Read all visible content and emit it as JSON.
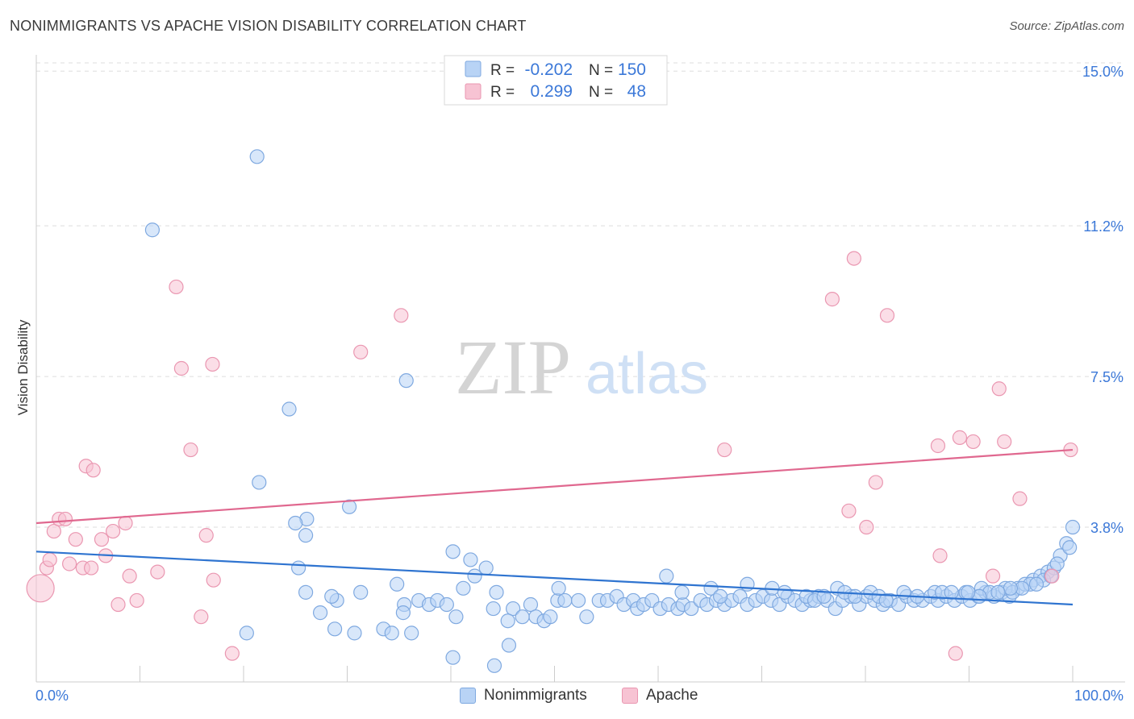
{
  "title": "NONIMMIGRANTS VS APACHE VISION DISABILITY CORRELATION CHART",
  "source": "Source: ZipAtlas.com",
  "watermark": {
    "zip": "ZIP",
    "atlas": "atlas"
  },
  "colors": {
    "blue_fill": "#b8d3f5",
    "blue_stroke": "#7fa9e0",
    "blue_line": "#2f74d0",
    "pink_fill": "#f7c3d3",
    "pink_stroke": "#ea97b1",
    "pink_line": "#e0688f",
    "tick_text": "#3b78d8",
    "grid": "#dddddd"
  },
  "legend": {
    "rows": [
      {
        "r_label": "R =",
        "r_value": "-0.202",
        "n_label": "N =",
        "n_value": "150"
      },
      {
        "r_label": "R =",
        "r_value": "0.299",
        "n_label": "N =",
        "n_value": "48"
      }
    ]
  },
  "bottom_legend": [
    "Nonimmigrants",
    "Apache"
  ],
  "chart_data": {
    "type": "scatter",
    "title": "NONIMMIGRANTS VS APACHE VISION DISABILITY CORRELATION CHART",
    "xlabel": "",
    "ylabel": "Vision Disability",
    "xlim": [
      0,
      100
    ],
    "ylim": [
      0,
      15.4
    ],
    "x_tick_labels": [
      "0.0%",
      "100.0%"
    ],
    "y_ticks": [
      3.8,
      7.5,
      11.2,
      15.0
    ],
    "y_tick_labels": [
      "3.8%",
      "7.5%",
      "11.2%",
      "15.0%"
    ],
    "grid": "horizontal dashed",
    "legend_position": "top-center",
    "series": [
      {
        "name": "Nonimmigrants",
        "r": -0.202,
        "n": 150,
        "trend": {
          "x": [
            0,
            100
          ],
          "y": [
            3.2,
            1.9
          ]
        },
        "points": [
          [
            21.3,
            12.9
          ],
          [
            11.2,
            11.1
          ],
          [
            35.7,
            7.4
          ],
          [
            24.4,
            6.7
          ],
          [
            21.5,
            4.9
          ],
          [
            30.2,
            4.3
          ],
          [
            26.1,
            4.0
          ],
          [
            25.0,
            3.9
          ],
          [
            26.0,
            3.6
          ],
          [
            40.2,
            3.2
          ],
          [
            41.9,
            3.0
          ],
          [
            25.3,
            2.8
          ],
          [
            42.3,
            2.6
          ],
          [
            34.8,
            2.4
          ],
          [
            41.2,
            2.3
          ],
          [
            43.4,
            2.8
          ],
          [
            31.3,
            2.2
          ],
          [
            26.0,
            2.2
          ],
          [
            29.0,
            2.0
          ],
          [
            28.5,
            2.1
          ],
          [
            36.9,
            2.0
          ],
          [
            37.9,
            1.9
          ],
          [
            38.7,
            2.0
          ],
          [
            39.6,
            1.9
          ],
          [
            35.5,
            1.9
          ],
          [
            27.4,
            1.7
          ],
          [
            35.4,
            1.7
          ],
          [
            40.5,
            1.6
          ],
          [
            44.4,
            2.2
          ],
          [
            44.1,
            1.8
          ],
          [
            46.0,
            1.8
          ],
          [
            47.7,
            1.9
          ],
          [
            45.5,
            1.5
          ],
          [
            48.2,
            1.6
          ],
          [
            46.9,
            1.6
          ],
          [
            49.0,
            1.5
          ],
          [
            49.6,
            1.6
          ],
          [
            50.3,
            2.0
          ],
          [
            51.0,
            2.0
          ],
          [
            52.3,
            2.0
          ],
          [
            53.1,
            1.6
          ],
          [
            54.3,
            2.0
          ],
          [
            55.1,
            2.0
          ],
          [
            56.0,
            2.1
          ],
          [
            56.7,
            1.9
          ],
          [
            57.6,
            2.0
          ],
          [
            58.0,
            1.8
          ],
          [
            58.6,
            1.9
          ],
          [
            59.4,
            2.0
          ],
          [
            60.2,
            1.8
          ],
          [
            61.0,
            1.9
          ],
          [
            61.9,
            1.8
          ],
          [
            62.4,
            1.9
          ],
          [
            63.2,
            1.8
          ],
          [
            64.1,
            2.0
          ],
          [
            64.7,
            1.9
          ],
          [
            65.6,
            2.0
          ],
          [
            66.4,
            1.9
          ],
          [
            67.1,
            2.0
          ],
          [
            67.9,
            2.1
          ],
          [
            68.6,
            1.9
          ],
          [
            69.4,
            2.0
          ],
          [
            70.1,
            2.1
          ],
          [
            70.9,
            2.0
          ],
          [
            71.7,
            1.9
          ],
          [
            72.5,
            2.1
          ],
          [
            73.2,
            2.0
          ],
          [
            73.9,
            1.9
          ],
          [
            74.7,
            2.0
          ],
          [
            75.5,
            2.1
          ],
          [
            76.3,
            2.0
          ],
          [
            77.1,
            1.8
          ],
          [
            77.8,
            2.0
          ],
          [
            78.6,
            2.1
          ],
          [
            79.4,
            1.9
          ],
          [
            80.1,
            2.1
          ],
          [
            80.9,
            2.0
          ],
          [
            81.7,
            1.9
          ],
          [
            82.4,
            2.0
          ],
          [
            83.2,
            1.9
          ],
          [
            84.0,
            2.1
          ],
          [
            84.7,
            2.0
          ],
          [
            85.5,
            2.0
          ],
          [
            86.3,
            2.1
          ],
          [
            87.0,
            2.0
          ],
          [
            87.8,
            2.1
          ],
          [
            88.6,
            2.0
          ],
          [
            89.3,
            2.1
          ],
          [
            90.1,
            2.0
          ],
          [
            90.9,
            2.1
          ],
          [
            91.6,
            2.2
          ],
          [
            92.4,
            2.1
          ],
          [
            93.2,
            2.2
          ],
          [
            93.9,
            2.1
          ],
          [
            94.7,
            2.3
          ],
          [
            95.4,
            2.4
          ],
          [
            96.2,
            2.5
          ],
          [
            96.9,
            2.6
          ],
          [
            97.6,
            2.7
          ],
          [
            98.2,
            2.8
          ],
          [
            98.8,
            3.1
          ],
          [
            99.4,
            3.4
          ],
          [
            100.0,
            3.8
          ],
          [
            20.3,
            1.2
          ],
          [
            33.5,
            1.3
          ],
          [
            34.3,
            1.2
          ],
          [
            36.2,
            1.2
          ],
          [
            28.8,
            1.3
          ],
          [
            30.7,
            1.2
          ],
          [
            40.2,
            0.6
          ],
          [
            44.2,
            0.4
          ],
          [
            45.6,
            0.9
          ],
          [
            50.4,
            2.3
          ],
          [
            60.8,
            2.6
          ],
          [
            62.3,
            2.2
          ],
          [
            65.1,
            2.3
          ],
          [
            66.0,
            2.1
          ],
          [
            68.6,
            2.4
          ],
          [
            71.0,
            2.3
          ],
          [
            72.2,
            2.2
          ],
          [
            74.3,
            2.1
          ],
          [
            75.1,
            2.0
          ],
          [
            76.0,
            2.1
          ],
          [
            77.3,
            2.3
          ],
          [
            78.0,
            2.2
          ],
          [
            79.0,
            2.1
          ],
          [
            80.5,
            2.2
          ],
          [
            81.3,
            2.1
          ],
          [
            82.0,
            2.0
          ],
          [
            83.7,
            2.2
          ],
          [
            85.0,
            2.1
          ],
          [
            86.7,
            2.2
          ],
          [
            87.4,
            2.2
          ],
          [
            88.3,
            2.2
          ],
          [
            89.7,
            2.2
          ],
          [
            91.2,
            2.3
          ],
          [
            92.0,
            2.2
          ],
          [
            93.5,
            2.3
          ],
          [
            94.2,
            2.2
          ],
          [
            95.9,
            2.4
          ],
          [
            97.2,
            2.5
          ],
          [
            98.5,
            2.9
          ],
          [
            99.7,
            3.3
          ],
          [
            97.9,
            2.6
          ],
          [
            96.5,
            2.4
          ],
          [
            95.1,
            2.3
          ],
          [
            94.0,
            2.3
          ],
          [
            92.8,
            2.2
          ],
          [
            91.0,
            2.1
          ],
          [
            89.9,
            2.2
          ]
        ]
      },
      {
        "name": "Apache",
        "r": 0.299,
        "n": 48,
        "trend": {
          "x": [
            0,
            100
          ],
          "y": [
            3.9,
            5.7
          ]
        },
        "points": [
          [
            0.4,
            2.3
          ],
          [
            1.0,
            2.8
          ],
          [
            1.3,
            3.0
          ],
          [
            1.7,
            3.7
          ],
          [
            2.2,
            4.0
          ],
          [
            2.8,
            4.0
          ],
          [
            3.2,
            2.9
          ],
          [
            3.8,
            3.5
          ],
          [
            4.5,
            2.8
          ],
          [
            4.8,
            5.3
          ],
          [
            5.5,
            5.2
          ],
          [
            5.3,
            2.8
          ],
          [
            6.3,
            3.5
          ],
          [
            6.7,
            3.1
          ],
          [
            7.4,
            3.7
          ],
          [
            7.9,
            1.9
          ],
          [
            8.6,
            3.9
          ],
          [
            9.0,
            2.6
          ],
          [
            9.7,
            2.0
          ],
          [
            11.7,
            2.7
          ],
          [
            13.5,
            9.7
          ],
          [
            14.0,
            7.7
          ],
          [
            14.9,
            5.7
          ],
          [
            15.9,
            1.6
          ],
          [
            16.4,
            3.6
          ],
          [
            17.0,
            7.8
          ],
          [
            17.1,
            2.5
          ],
          [
            18.9,
            0.7
          ],
          [
            31.3,
            8.1
          ],
          [
            35.2,
            9.0
          ],
          [
            66.4,
            5.7
          ],
          [
            76.8,
            9.4
          ],
          [
            78.4,
            4.2
          ],
          [
            78.9,
            10.4
          ],
          [
            80.1,
            3.8
          ],
          [
            81.0,
            4.9
          ],
          [
            82.1,
            9.0
          ],
          [
            87.0,
            5.8
          ],
          [
            87.2,
            3.1
          ],
          [
            88.7,
            0.7
          ],
          [
            89.1,
            6.0
          ],
          [
            90.4,
            5.9
          ],
          [
            92.3,
            2.6
          ],
          [
            92.9,
            7.2
          ],
          [
            93.4,
            5.9
          ],
          [
            94.9,
            4.5
          ],
          [
            98.0,
            2.6
          ],
          [
            99.8,
            5.7
          ]
        ]
      }
    ]
  }
}
